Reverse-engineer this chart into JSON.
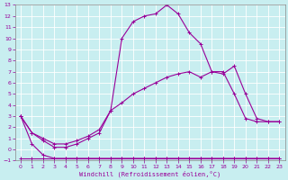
{
  "xlabel": "Windchill (Refroidissement éolien,°C)",
  "bg_color": "#c8eef0",
  "grid_color": "#ffffff",
  "line_color": "#990099",
  "line1_x": [
    0,
    1,
    2,
    3,
    4,
    5,
    6,
    7,
    8,
    9,
    10,
    11,
    12,
    13,
    14,
    15,
    16,
    17,
    18,
    19,
    20,
    21,
    22,
    23
  ],
  "line1_y": [
    -0.8,
    -0.8,
    -0.8,
    -0.8,
    -0.8,
    -0.8,
    -0.8,
    -0.8,
    -0.8,
    -0.8,
    -0.8,
    -0.8,
    -0.8,
    -0.8,
    -0.8,
    -0.8,
    -0.8,
    -0.8,
    -0.8,
    -0.8,
    -0.8,
    -0.8,
    -0.8,
    -0.8
  ],
  "line2_x": [
    0,
    1,
    2,
    3,
    4,
    5,
    6,
    7,
    8,
    9,
    10,
    11,
    12,
    13,
    14,
    15,
    16,
    17,
    18,
    19,
    20,
    21,
    22,
    23
  ],
  "line2_y": [
    3.0,
    0.5,
    -0.5,
    -0.8,
    -0.8,
    -0.8,
    -0.8,
    -0.8,
    -0.8,
    -0.8,
    -0.8,
    -0.8,
    -0.8,
    -0.8,
    -0.8,
    -0.8,
    -0.8,
    -0.8,
    -0.8,
    -0.8,
    -0.8,
    -0.8,
    -0.8,
    -0.8
  ],
  "line3_x": [
    0,
    1,
    2,
    3,
    4,
    5,
    6,
    7,
    8,
    9,
    10,
    11,
    12,
    13,
    14,
    15,
    16,
    17,
    18,
    19,
    20,
    21,
    22,
    23
  ],
  "line3_y": [
    3.0,
    1.5,
    1.0,
    0.5,
    0.5,
    0.8,
    1.2,
    1.8,
    3.5,
    4.2,
    5.0,
    5.5,
    6.0,
    6.5,
    6.8,
    7.0,
    6.5,
    7.0,
    6.8,
    7.5,
    5.0,
    2.8,
    2.5,
    2.5
  ],
  "line4_x": [
    0,
    1,
    2,
    3,
    4,
    5,
    6,
    7,
    8,
    9,
    10,
    11,
    12,
    13,
    14,
    15,
    16,
    17,
    18,
    19,
    20,
    21,
    22,
    23
  ],
  "line4_y": [
    3.0,
    1.5,
    0.8,
    0.2,
    0.2,
    0.5,
    1.0,
    1.5,
    3.5,
    10.0,
    11.5,
    12.0,
    12.2,
    13.0,
    12.2,
    10.5,
    9.5,
    7.0,
    7.0,
    5.0,
    2.8,
    2.5,
    2.5,
    2.5
  ],
  "xlim": [
    -0.5,
    23.5
  ],
  "ylim": [
    -1,
    13
  ],
  "yticks": [
    -1,
    0,
    1,
    2,
    3,
    4,
    5,
    6,
    7,
    8,
    9,
    10,
    11,
    12,
    13
  ],
  "xticks": [
    0,
    1,
    2,
    3,
    4,
    5,
    6,
    7,
    8,
    9,
    10,
    11,
    12,
    13,
    14,
    15,
    16,
    17,
    18,
    19,
    20,
    21,
    22,
    23
  ]
}
